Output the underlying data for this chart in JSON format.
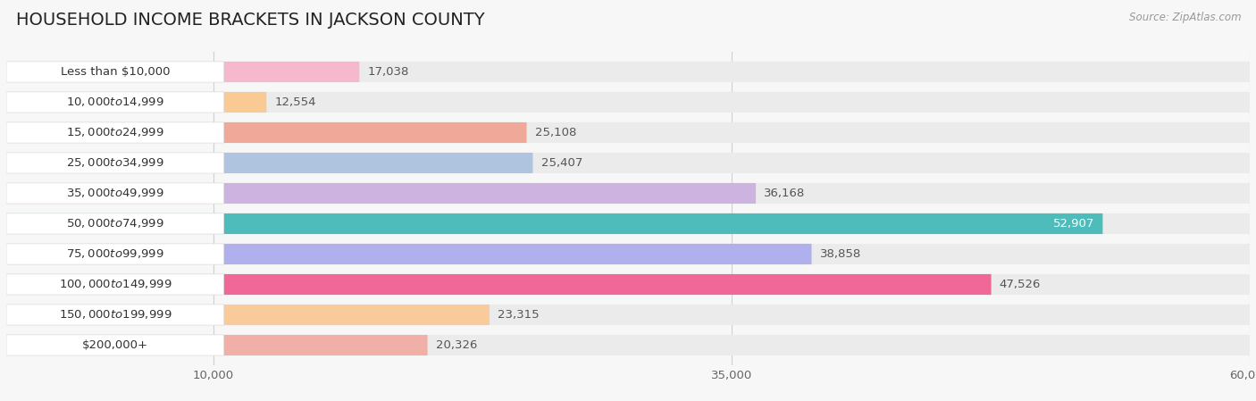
{
  "title": "HOUSEHOLD INCOME BRACKETS IN JACKSON COUNTY",
  "source": "Source: ZipAtlas.com",
  "categories": [
    "Less than $10,000",
    "$10,000 to $14,999",
    "$15,000 to $24,999",
    "$25,000 to $34,999",
    "$35,000 to $49,999",
    "$50,000 to $74,999",
    "$75,000 to $99,999",
    "$100,000 to $149,999",
    "$150,000 to $199,999",
    "$200,000+"
  ],
  "values": [
    17038,
    12554,
    25108,
    25407,
    36168,
    52907,
    38858,
    47526,
    23315,
    20326
  ],
  "bar_colors": [
    "#f5b8cc",
    "#f9ca93",
    "#f0a898",
    "#aec4df",
    "#ccb3e0",
    "#4dbcba",
    "#b0b0ec",
    "#f06898",
    "#f9ca9a",
    "#f0b0a8"
  ],
  "dot_colors": [
    "#e87aaa",
    "#f0a850",
    "#e87868",
    "#7098c8",
    "#9868c8",
    "#208888",
    "#7878d0",
    "#e02880",
    "#f0a858",
    "#e09088"
  ],
  "label_bg_color": "#ffffff",
  "bg_bar_color": "#ebebeb",
  "background_color": "#f7f7f7",
  "xlim": [
    0,
    60000
  ],
  "title_fontsize": 14,
  "label_fontsize": 9.5,
  "value_fontsize": 9.5,
  "value_label_color": "#555555",
  "bar_height": 0.68
}
